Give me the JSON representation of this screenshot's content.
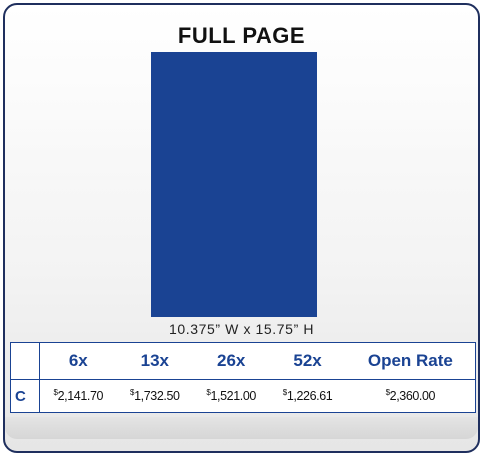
{
  "header": {
    "title": "FULL PAGE"
  },
  "ad": {
    "dimensions": "10.375” W x 15.75” H"
  },
  "table": {
    "columns": [
      "",
      "6x",
      "13x",
      "26x",
      "52x",
      "Open Rate"
    ],
    "rows": [
      [
        "C",
        "$2,141.70",
        "$1,732.50",
        "$1,521.00",
        "$1,226.61",
        "$2,360.00"
      ]
    ]
  }
}
